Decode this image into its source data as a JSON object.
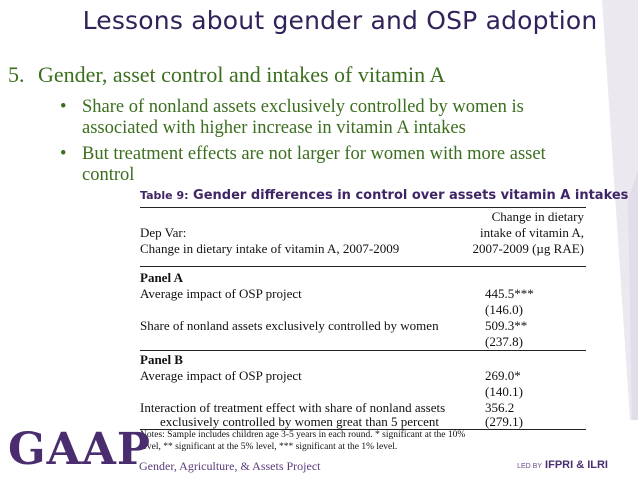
{
  "slide": {
    "title": "Lessons about gender and OSP adoption",
    "section_number": "5.",
    "section_title": "Gender, asset control and intakes of vitamin A",
    "bullets": [
      "Share of nonland assets exclusively controlled by women is associated with higher increase in vitamin A intakes",
      "But treatment effects are not larger for women with more asset control"
    ]
  },
  "table": {
    "label": "Table 9:",
    "title": "Gender differences in control over assets vitamin A intakes",
    "dep_var_label": "Dep Var:",
    "dep_var_desc": "Change in dietary intake of vitamin A, 2007-2009",
    "col_header": [
      "Change in dietary",
      "intake of vitamin A,",
      "2007-2009 (µg RAE)"
    ],
    "panel_a": {
      "label": "Panel A",
      "rows": [
        {
          "label": "Average impact of OSP project",
          "value": "445.5***",
          "se": "(146.0)"
        },
        {
          "label": "Share of nonland assets exclusively controlled by women",
          "value": "509.3**",
          "se": "(237.8)"
        }
      ]
    },
    "panel_b": {
      "label": "Panel B",
      "rows": [
        {
          "label": "Average impact of OSP project",
          "value": "269.0*",
          "se": "(140.1)"
        },
        {
          "label": "Interaction of treatment effect with share of nonland assets",
          "label2": "exclusively controlled by women great than 5 percent",
          "value": "356.2",
          "se": "(279.1)"
        }
      ]
    },
    "notes": "Notes: Sample includes children age 3-5 years in each round. * significant at the 10% level, ** significant at the 5% level, *** significant at the 1% level."
  },
  "footer": {
    "logo": "GAAP",
    "logo_subtitle": "Gender, Agriculture, & Assets Project",
    "led_by": "LED BY",
    "partners": "IFPRI & ILRI"
  },
  "colors": {
    "title": "#33215a",
    "body_green": "#3b6e1e",
    "logo_purple": "#4a2d6e"
  }
}
